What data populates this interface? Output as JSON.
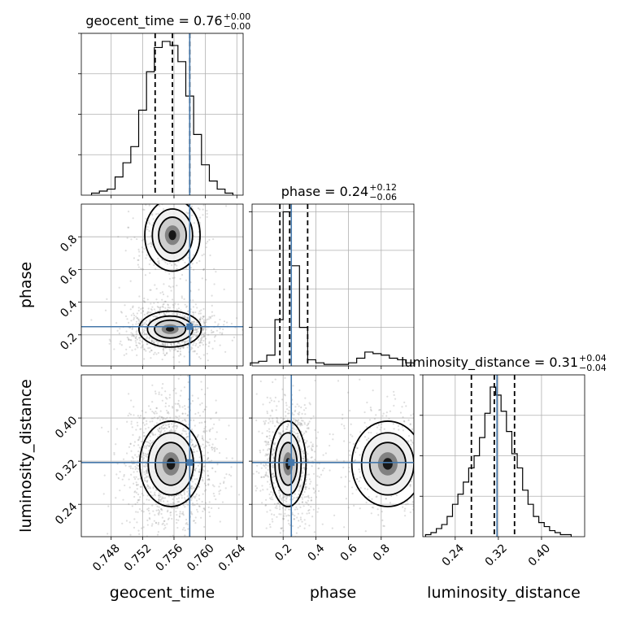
{
  "figure": {
    "type": "corner-plot",
    "truth_color": "#4477aa"
  },
  "chart_data": [
    {
      "type": "bar",
      "panel": "hist-geocent_time",
      "title_prefix": "geocent_time = 0.76",
      "title_plus": "+0.00",
      "title_minus": "−0.00",
      "x": [
        0.746,
        0.747,
        0.748,
        0.749,
        0.75,
        0.751,
        0.752,
        0.753,
        0.754,
        0.755,
        0.756,
        0.757,
        0.758,
        0.759,
        0.76,
        0.761,
        0.762,
        0.763
      ],
      "values": [
        1,
        2,
        3,
        9,
        16,
        24,
        42,
        61,
        73,
        76,
        74,
        66,
        49,
        30,
        15,
        7,
        3,
        1
      ],
      "xlim": [
        0.7442,
        0.7648
      ],
      "ylim": [
        0,
        80
      ],
      "quantiles": [
        0.7536,
        0.7558,
        0.758
      ],
      "truth": 0.758
    },
    {
      "type": "scatter",
      "panel": "geocent_time-vs-phase",
      "xlim": [
        0.7442,
        0.7648
      ],
      "ylim": [
        0.01,
        1.0
      ],
      "yticks": [
        0.2,
        0.4,
        0.6,
        0.8
      ],
      "ylabel": "phase",
      "truth": [
        0.758,
        0.25
      ],
      "clusters": [
        {
          "cx": 0.7555,
          "cy": 0.235,
          "sx": 0.0018,
          "sy": 0.05,
          "weight": 0.7
        },
        {
          "cx": 0.7558,
          "cy": 0.81,
          "sx": 0.0016,
          "sy": 0.1,
          "weight": 0.3
        }
      ]
    },
    {
      "type": "bar",
      "panel": "hist-phase",
      "title_prefix": "phase = 0.24",
      "title_plus": "+0.12",
      "title_minus": "−0.06",
      "x": [
        0.025,
        0.075,
        0.125,
        0.175,
        0.225,
        0.275,
        0.325,
        0.375,
        0.425,
        0.475,
        0.525,
        0.575,
        0.625,
        0.675,
        0.725,
        0.775,
        0.825,
        0.875,
        0.925,
        0.975
      ],
      "values": [
        2,
        3,
        7,
        30,
        100,
        65,
        25,
        4,
        2,
        1,
        1,
        1,
        2,
        5,
        9,
        8,
        7,
        5,
        4,
        2
      ],
      "xlim": [
        0.01,
        1.0
      ],
      "ylim": [
        0,
        105
      ],
      "quantiles": [
        0.18,
        0.24,
        0.35
      ],
      "truth": 0.25
    },
    {
      "type": "scatter",
      "panel": "geocent_time-vs-luminosity_distance",
      "xlim": [
        0.7442,
        0.7648
      ],
      "ylim": [
        0.18,
        0.48
      ],
      "xticks": [
        0.748,
        0.752,
        0.756,
        0.76,
        0.764
      ],
      "yticks": [
        0.24,
        0.32,
        0.4
      ],
      "xlabel": "geocent_time",
      "ylabel": "luminosity_distance",
      "truth": [
        0.758,
        0.3175
      ],
      "clusters": [
        {
          "cx": 0.7556,
          "cy": 0.315,
          "sx": 0.0018,
          "sy": 0.036,
          "weight": 1.0
        }
      ]
    },
    {
      "type": "scatter",
      "panel": "phase-vs-luminosity_distance",
      "xlim": [
        0.01,
        1.0
      ],
      "ylim": [
        0.18,
        0.48
      ],
      "xticks": [
        0.2,
        0.4,
        0.6,
        0.8
      ],
      "xlabel": "phase",
      "truth": [
        0.25,
        0.3175
      ],
      "clusters": [
        {
          "cx": 0.23,
          "cy": 0.315,
          "sx": 0.05,
          "sy": 0.036,
          "weight": 0.7
        },
        {
          "cx": 0.84,
          "cy": 0.315,
          "sx": 0.1,
          "sy": 0.036,
          "weight": 0.3
        }
      ]
    },
    {
      "type": "bar",
      "panel": "hist-luminosity_distance",
      "title_prefix": "luminosity_distance = 0.31",
      "title_plus": "+0.04",
      "title_minus": "−0.04",
      "x": [
        0.19,
        0.2,
        0.21,
        0.22,
        0.23,
        0.24,
        0.25,
        0.26,
        0.27,
        0.28,
        0.29,
        0.3,
        0.31,
        0.32,
        0.33,
        0.34,
        0.35,
        0.36,
        0.37,
        0.38,
        0.39,
        0.4,
        0.41,
        0.42,
        0.43,
        0.44,
        0.45
      ],
      "values": [
        1,
        2,
        4,
        6,
        10,
        16,
        21,
        27,
        34,
        40,
        49,
        61,
        74,
        70,
        62,
        52,
        41,
        34,
        23,
        16,
        10,
        7,
        5,
        3,
        2,
        1,
        1
      ],
      "xlim": [
        0.18,
        0.48
      ],
      "ylim": [
        0,
        80
      ],
      "xticks": [
        0.24,
        0.32,
        0.4
      ],
      "xlabel": "luminosity_distance",
      "quantiles": [
        0.27,
        0.3125,
        0.35
      ],
      "truth": 0.3175
    }
  ]
}
